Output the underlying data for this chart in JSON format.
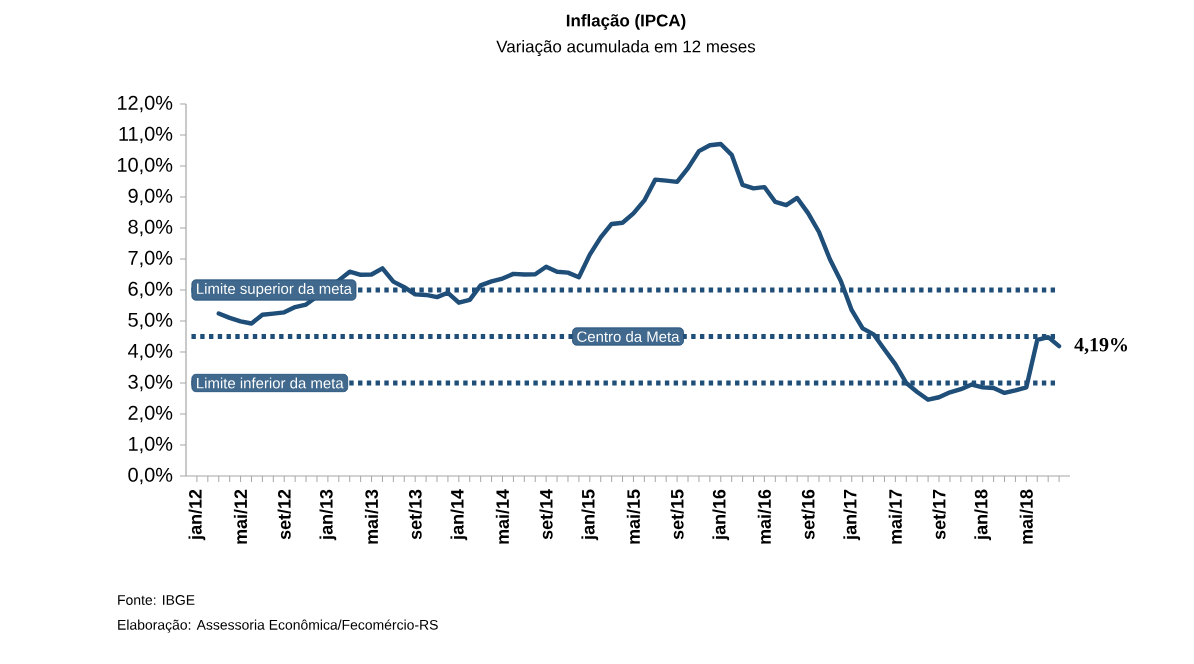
{
  "chart_data": {
    "type": "line",
    "title": "Inflação (IPCA)",
    "subtitle": "Variação acumulada em 12 meses",
    "categories": [
      "jan/12",
      null,
      null,
      null,
      "mai/12",
      null,
      null,
      null,
      "set/12",
      null,
      null,
      null,
      "jan/13",
      null,
      null,
      null,
      "mai/13",
      null,
      null,
      null,
      "set/13",
      null,
      null,
      null,
      "jan/14",
      null,
      null,
      null,
      "mai/14",
      null,
      null,
      null,
      "set/14",
      null,
      null,
      null,
      "jan/15",
      null,
      null,
      null,
      "mai/15",
      null,
      null,
      null,
      "set/15",
      null,
      null,
      null,
      "jan/16",
      null,
      null,
      null,
      "mai/16",
      null,
      null,
      null,
      "set/16",
      null,
      null,
      null,
      "jan/17",
      null,
      null,
      null,
      "mai/17",
      null,
      null,
      null,
      "set/17",
      null,
      null,
      null,
      "jan/18",
      null,
      null,
      null,
      "mai/18",
      null,
      null,
      null
    ],
    "series": [
      {
        "color": "#1f4e79",
        "values": [
          null,
          null,
          5.24,
          5.1,
          4.99,
          4.92,
          5.2,
          5.24,
          5.28,
          5.45,
          5.53,
          null,
          null,
          6.31,
          6.59,
          6.49,
          6.5,
          6.7,
          6.27,
          6.09,
          5.86,
          5.84,
          5.77,
          5.91,
          5.59,
          5.68,
          6.15,
          6.28,
          6.37,
          6.52,
          6.5,
          6.51,
          6.75,
          6.59,
          6.56,
          6.41,
          7.14,
          7.7,
          8.13,
          8.17,
          8.47,
          8.89,
          9.56,
          9.53,
          9.49,
          9.93,
          10.48,
          10.67,
          10.71,
          10.36,
          9.39,
          9.28,
          9.32,
          8.84,
          8.74,
          8.97,
          8.48,
          7.87,
          6.99,
          6.29,
          5.35,
          4.76,
          4.57,
          4.08,
          3.6,
          3.0,
          2.71,
          2.46,
          2.54,
          2.7,
          2.8,
          2.95,
          2.86,
          2.84,
          2.68,
          2.76,
          2.86,
          4.39,
          4.48,
          4.19
        ]
      }
    ],
    "ylim": [
      0,
      12
    ],
    "yticks": [
      {
        "value": 0,
        "label": "0,0%"
      },
      {
        "value": 1,
        "label": "1,0%"
      },
      {
        "value": 2,
        "label": "2,0%"
      },
      {
        "value": 3,
        "label": "3,0%"
      },
      {
        "value": 4,
        "label": "4,0%"
      },
      {
        "value": 5,
        "label": "5,0%"
      },
      {
        "value": 6,
        "label": "6,0%"
      },
      {
        "value": 7,
        "label": "7,0%"
      },
      {
        "value": 8,
        "label": "8,0%"
      },
      {
        "value": 9,
        "label": "9,0%"
      },
      {
        "value": 10,
        "label": "10,0%"
      },
      {
        "value": 11,
        "label": "11,0%"
      },
      {
        "value": 12,
        "label": "12,0%"
      }
    ],
    "ref_lines": [
      {
        "axis": "y",
        "value": 6.0,
        "label": "Limite superior da meta",
        "color": "#1f4e79",
        "line_style": "dotted"
      },
      {
        "axis": "y",
        "value": 4.5,
        "label": "Centro da Meta",
        "color": "#1f4e79",
        "line_style": "dotted"
      },
      {
        "axis": "y",
        "value": 3.0,
        "label": "Limite inferior da meta",
        "color": "#1f4e79",
        "line_style": "dotted"
      }
    ],
    "annotations": [
      "4,19%",
      "Fonte: IBGE",
      "Elaboração: Assessoria Econômica/Fecomércio-RS"
    ],
    "marker": "none",
    "line_style": "solid"
  }
}
